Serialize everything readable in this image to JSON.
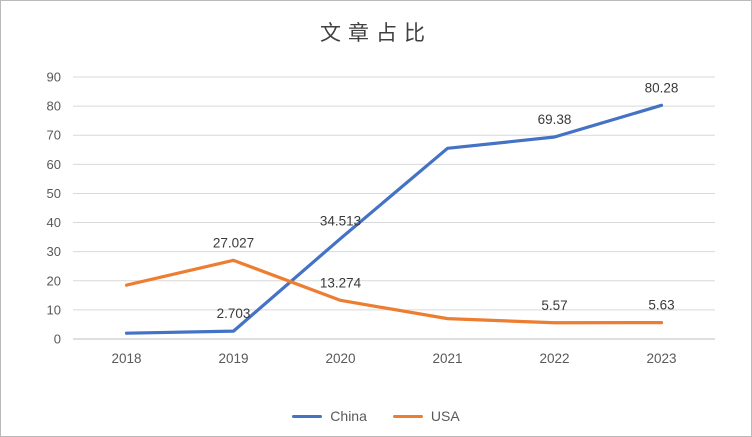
{
  "chart_data": {
    "type": "line",
    "title": "文章占比",
    "categories": [
      "2018",
      "2019",
      "2020",
      "2021",
      "2022",
      "2023"
    ],
    "ylim": [
      0,
      90
    ],
    "ytick_step": 10,
    "yticks": [
      0,
      10,
      20,
      30,
      40,
      50,
      60,
      70,
      80,
      90
    ],
    "grid": true,
    "legend_position": "bottom",
    "series": [
      {
        "name": "China",
        "color": "#4472C4",
        "values": [
          2.0,
          2.703,
          34.513,
          65.5,
          69.38,
          80.28
        ],
        "point_labels": [
          "",
          "2.703",
          "34.513",
          "",
          "69.38",
          "80.28"
        ]
      },
      {
        "name": "USA",
        "color": "#ED7D31",
        "values": [
          18.5,
          27.027,
          13.274,
          7.0,
          5.57,
          5.63
        ],
        "point_labels": [
          "",
          "27.027",
          "13.274",
          "",
          "5.57",
          "5.63"
        ]
      }
    ]
  },
  "colors": {
    "grid": "#d9d9d9",
    "axis": "#bfbfbf",
    "tick_text": "#595959",
    "label_text": "#3a3a3a"
  }
}
